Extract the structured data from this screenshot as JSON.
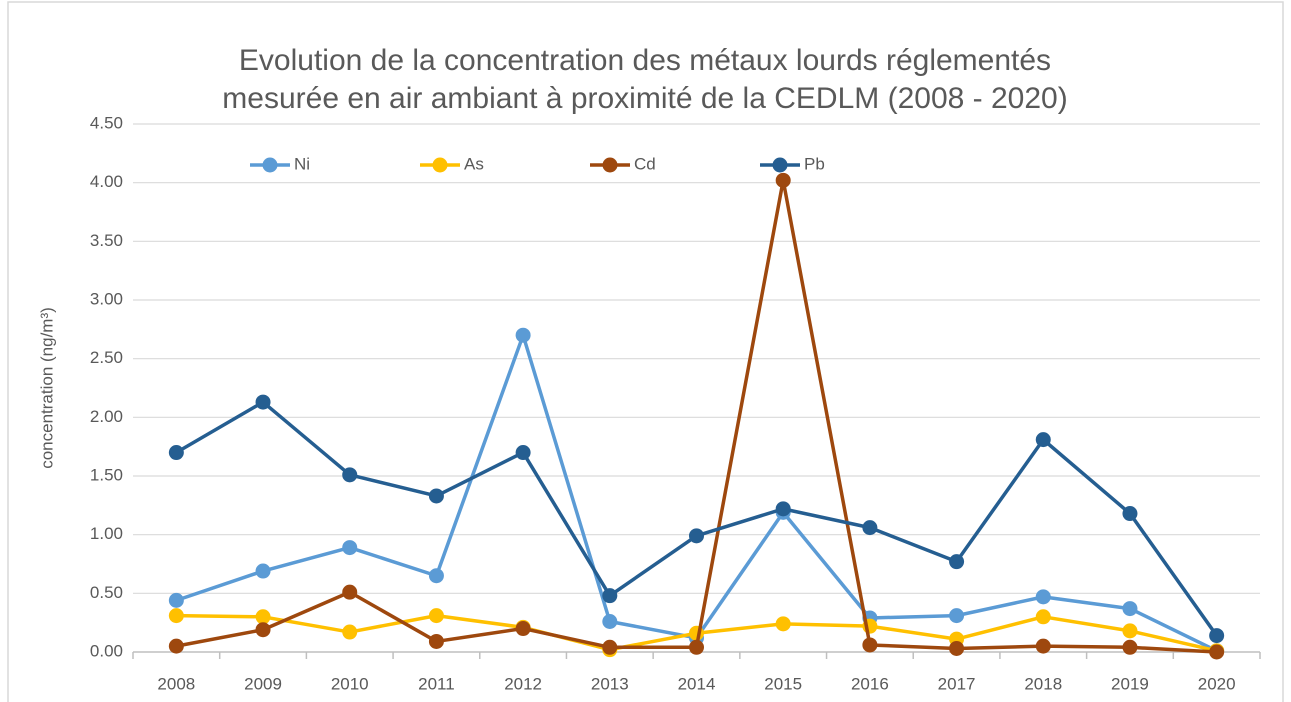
{
  "chart_data": {
    "type": "line",
    "title": [
      "Evolution de la concentration des métaux lourds réglementés",
      "mesurée en air ambiant à proximité de la CEDLM (2008 - 2020)"
    ],
    "y_axis_label": "concentration (ng/m³)",
    "categories": [
      "2008",
      "2009",
      "2010",
      "2011",
      "2012",
      "2013",
      "2014",
      "2015",
      "2016",
      "2017",
      "2018",
      "2019",
      "2020"
    ],
    "series": [
      {
        "name": "Ni",
        "color": "#5b9bd5",
        "values": [
          0.44,
          0.69,
          0.89,
          0.65,
          2.7,
          0.26,
          0.12,
          1.19,
          0.29,
          0.31,
          0.47,
          0.37,
          0.01
        ]
      },
      {
        "name": "As",
        "color": "#ffc000",
        "values": [
          0.31,
          0.3,
          0.17,
          0.31,
          0.21,
          0.02,
          0.16,
          0.24,
          0.22,
          0.11,
          0.3,
          0.18,
          0.01
        ]
      },
      {
        "name": "Cd",
        "color": "#9e480e",
        "values": [
          0.05,
          0.19,
          0.51,
          0.09,
          0.2,
          0.04,
          0.04,
          4.02,
          0.06,
          0.03,
          0.05,
          0.04,
          0.0
        ]
      },
      {
        "name": "Pb",
        "color": "#255e91",
        "values": [
          1.7,
          2.13,
          1.51,
          1.33,
          1.7,
          0.48,
          0.99,
          1.22,
          1.06,
          0.77,
          1.81,
          1.18,
          0.14
        ]
      }
    ],
    "ylim": [
      0,
      4.5
    ],
    "yticks": [
      {
        "value": 0,
        "label": "0.00"
      },
      {
        "value": 0.5,
        "label": "0.50"
      },
      {
        "value": 1,
        "label": "1.00"
      },
      {
        "value": 1.5,
        "label": "1.50"
      },
      {
        "value": 2,
        "label": "2.00"
      },
      {
        "value": 2.5,
        "label": "2.50"
      },
      {
        "value": 3,
        "label": "3.00"
      },
      {
        "value": 3.5,
        "label": "3.50"
      },
      {
        "value": 4,
        "label": "4.00"
      },
      {
        "value": 4.5,
        "label": "4.50"
      }
    ],
    "grid": true,
    "legend": "top"
  }
}
